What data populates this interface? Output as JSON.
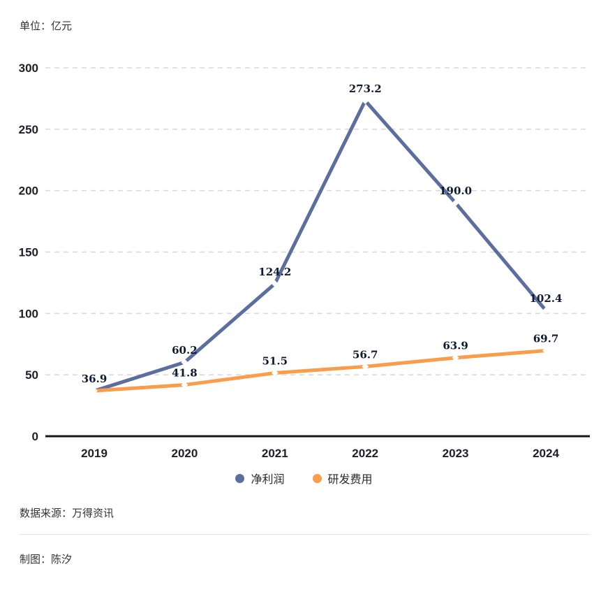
{
  "header": {
    "unit_label": "单位：亿元"
  },
  "chart_data": {
    "type": "line",
    "title": "",
    "xlabel": "",
    "ylabel": "亿元",
    "categories": [
      "2019",
      "2020",
      "2021",
      "2022",
      "2023",
      "2024"
    ],
    "series": [
      {
        "name": "净利润",
        "color": "#5b6e9e",
        "values": [
          36.9,
          60.2,
          124.2,
          273.2,
          190.0,
          102.4
        ],
        "labels": [
          "36.9",
          "60.2",
          "124.2",
          "273.2",
          "190.0",
          "102.4"
        ]
      },
      {
        "name": "研发费用",
        "color": "#f99d4b",
        "values": [
          37.0,
          41.8,
          51.5,
          56.7,
          63.9,
          69.7
        ],
        "labels": [
          "",
          "41.8",
          "51.5",
          "56.7",
          "63.9",
          "69.7"
        ]
      }
    ],
    "ylim": [
      0,
      300
    ],
    "yticks": [
      0,
      50,
      100,
      150,
      200,
      250,
      300
    ],
    "grid": "horizontal-dashed",
    "legend_position": "bottom",
    "axis_color": "#15151f",
    "gridline_color": "#d8d8d8"
  },
  "footer": {
    "source": "数据来源：万得资讯",
    "credit": "制图：陈汐"
  }
}
